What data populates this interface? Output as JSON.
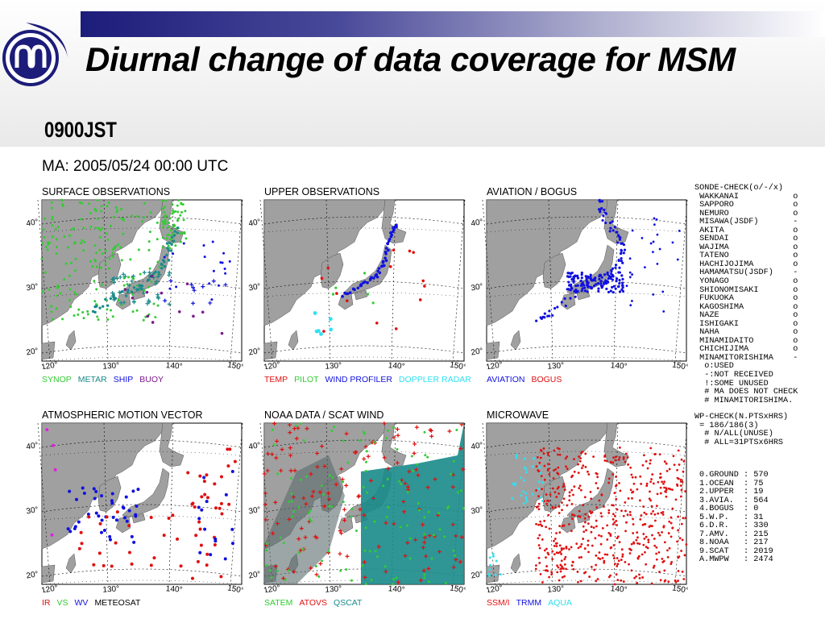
{
  "slide": {
    "title": "Diurnal change of data coverage for MSM",
    "subtitle": "0900JST",
    "ma_label": "MA: 2005/05/24 00:00 UTC"
  },
  "colors": {
    "sea": "#ffffff",
    "land": "#a0a0a0",
    "green": "#33cc33",
    "teal": "#1a8a8a",
    "blue": "#1010e0",
    "purple": "#7a1a8a",
    "red": "#e01010",
    "cyan": "#30e0f0",
    "magenta": "#e020e0"
  },
  "panels": [
    {
      "title": "SURFACE OBSERVATIONS",
      "legend": [
        {
          "text": "SYNOP",
          "color": "#33cc33"
        },
        {
          "text": "METAR",
          "color": "#1a8a8a"
        },
        {
          "text": "SHIP",
          "color": "#1010e0"
        },
        {
          "text": "BUOY",
          "color": "#7a1a8a"
        }
      ]
    },
    {
      "title": "UPPER OBSERVATIONS",
      "legend": [
        {
          "text": "TEMP",
          "color": "#e01010"
        },
        {
          "text": "PILOT",
          "color": "#33cc33"
        },
        {
          "text": "WIND PROFILER",
          "color": "#1010e0"
        },
        {
          "text": "DOPPLER RADAR",
          "color": "#30e0f0"
        }
      ]
    },
    {
      "title": "AVIATION / BOGUS",
      "legend": [
        {
          "text": "AVIATION",
          "color": "#1010e0"
        },
        {
          "text": "BOGUS",
          "color": "#e01010"
        }
      ]
    },
    {
      "title": "ATMOSPHERIC MOTION VECTOR",
      "legend": [
        {
          "text": "IR",
          "color": "#e01010"
        },
        {
          "text": "VS",
          "color": "#33cc33"
        },
        {
          "text": "WV",
          "color": "#1010e0"
        },
        {
          "text": "METEOSAT",
          "color": "#000000"
        }
      ]
    },
    {
      "title": "NOAA DATA / SCAT WIND",
      "legend": [
        {
          "text": "SATEM",
          "color": "#33cc33"
        },
        {
          "text": "ATOVS",
          "color": "#e01010"
        },
        {
          "text": "QSCAT",
          "color": "#1a8a8a"
        }
      ]
    },
    {
      "title": "MICROWAVE",
      "legend": [
        {
          "text": "SSM/I",
          "color": "#e01010"
        },
        {
          "text": "TRMM",
          "color": "#1010e0"
        },
        {
          "text": "AQUA",
          "color": "#30e0f0"
        }
      ]
    }
  ],
  "axis": {
    "lat_labels": [
      "40",
      "30",
      "20"
    ],
    "lon_labels": [
      "120",
      "130",
      "140",
      "150"
    ]
  },
  "sonde_check": {
    "header": "SONDE-CHECK(o/-/x)",
    "stations": [
      {
        "name": "WAKKANAI",
        "mark": "o"
      },
      {
        "name": "SAPPORO",
        "mark": "o"
      },
      {
        "name": "NEMURO",
        "mark": "o"
      },
      {
        "name": "MISAWA(JSDF)",
        "mark": "-"
      },
      {
        "name": "AKITA",
        "mark": "o"
      },
      {
        "name": "SENDAI",
        "mark": "o"
      },
      {
        "name": "WAJIMA",
        "mark": "o"
      },
      {
        "name": "TATENO",
        "mark": "o"
      },
      {
        "name": "HACHIJOJIMA",
        "mark": "o"
      },
      {
        "name": "HAMAMATSU(JSDF)",
        "mark": "-"
      },
      {
        "name": "YONAGO",
        "mark": "o"
      },
      {
        "name": "SHIONOMISAKI",
        "mark": "o"
      },
      {
        "name": "FUKUOKA",
        "mark": "o"
      },
      {
        "name": "KAGOSHIMA",
        "mark": "o"
      },
      {
        "name": "NAZE",
        "mark": "o"
      },
      {
        "name": "ISHIGAKI",
        "mark": "o"
      },
      {
        "name": "NAHA",
        "mark": "o"
      },
      {
        "name": "MINAMIDAITO",
        "mark": "o"
      },
      {
        "name": "CHICHIJIMA",
        "mark": "o"
      },
      {
        "name": "MINAMITORISHIMA",
        "mark": "-"
      }
    ],
    "notes": [
      " o:USED",
      " -:NOT RECEIVED",
      " !:SOME UNUSED",
      " # MA DOES NOT CHECK",
      " # MINAMITORISHIMA."
    ]
  },
  "wp_check": {
    "header": "WP-CHECK(N.PTSxHRS)",
    "lines": [
      " = 186/186(3)",
      "  # N/ALL(UNUSE)",
      "  # ALL=31PTSx6HRS"
    ]
  },
  "counts": [
    {
      "label": "0.GROUND",
      "value": "570"
    },
    {
      "label": "1.OCEAN",
      "value": "75"
    },
    {
      "label": "2.UPPER",
      "value": "19"
    },
    {
      "label": "3.AVIA.",
      "value": "564"
    },
    {
      "label": "4.BOGUS",
      "value": "0"
    },
    {
      "label": "5.W.P.",
      "value": "31"
    },
    {
      "label": "6.D.R.",
      "value": "330"
    },
    {
      "label": "7.AMV.",
      "value": "215"
    },
    {
      "label": "8.NOAA",
      "value": "217"
    },
    {
      "label": "9.SCAT",
      "value": "2019"
    },
    {
      "label": "A.MWPW",
      "value": "2474"
    }
  ]
}
